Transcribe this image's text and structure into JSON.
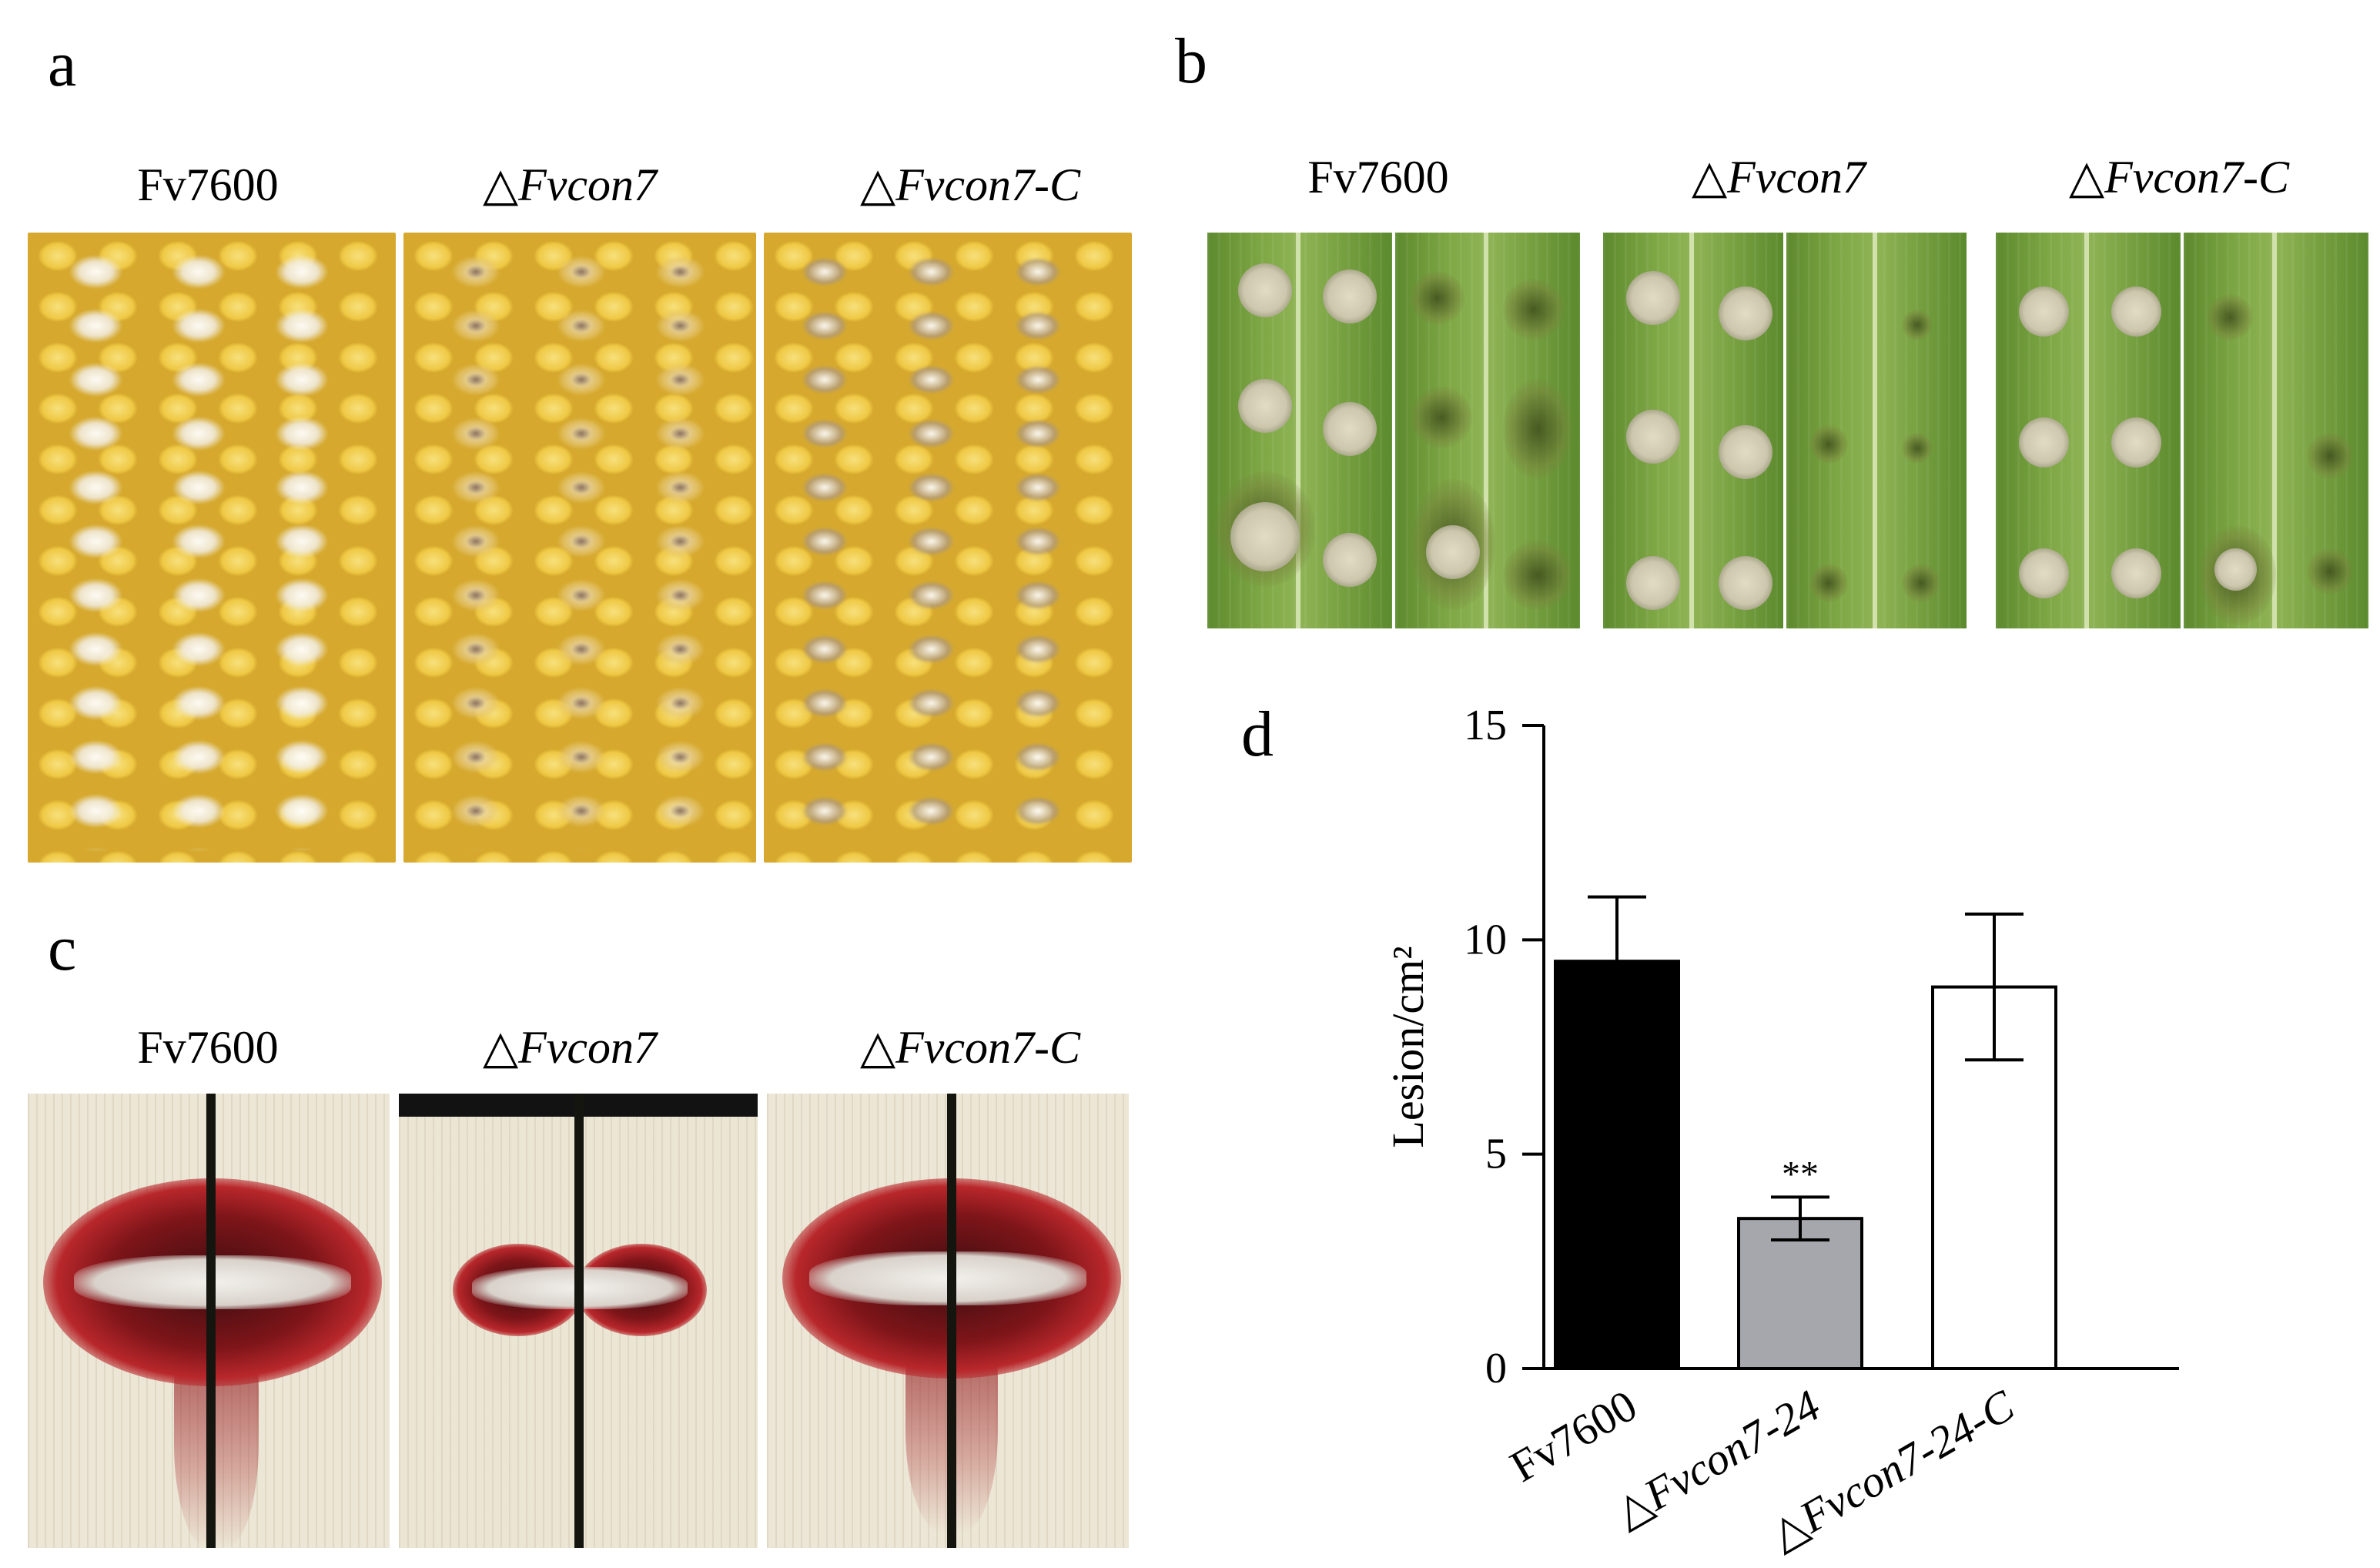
{
  "panels": {
    "a": {
      "letter": "a",
      "labels": [
        {
          "text": "Fv7600",
          "italic": false
        },
        {
          "text": "△Fvcon7",
          "italic": true
        },
        {
          "text": "△Fvcon7-C",
          "italic": true
        }
      ]
    },
    "b": {
      "letter": "b",
      "labels": [
        {
          "text": "Fv7600",
          "italic": false
        },
        {
          "text": "△Fvcon7",
          "italic": true
        },
        {
          "text": "△Fvcon7-C",
          "italic": true
        }
      ]
    },
    "c": {
      "letter": "c",
      "labels": [
        {
          "text": "Fv7600",
          "italic": false
        },
        {
          "text": "△Fvcon7",
          "italic": true
        },
        {
          "text": "△Fvcon7-C",
          "italic": true
        }
      ]
    },
    "d": {
      "letter": "d"
    }
  },
  "colors": {
    "kernel": "#efc945",
    "leaf": "#7fa845",
    "stalk": "#ece6d6",
    "stalk_lesion": "#7e1519",
    "bar_fv7600": "#000000",
    "bar_mutant": "#a6a6ad",
    "bar_complement": "#ffffff"
  },
  "chart_data": {
    "type": "bar",
    "categories": [
      "Fv7600",
      "△Fvcon7-24",
      "△Fvcon7-24-C"
    ],
    "values": [
      9.5,
      3.5,
      8.9
    ],
    "errors": [
      1.5,
      0.5,
      1.7
    ],
    "significance": [
      "",
      "**",
      ""
    ],
    "fills": [
      "#000000",
      "#a6a6ad",
      "#ffffff"
    ],
    "ylabel": "Lesion/cm²",
    "ylim": [
      0,
      15
    ],
    "yticks": [
      0,
      5,
      10,
      15
    ],
    "xtick_rotation_deg": -30,
    "grid": false
  }
}
